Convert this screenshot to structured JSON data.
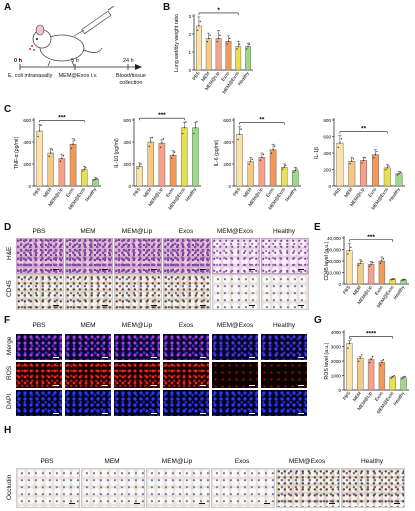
{
  "panel_letters": [
    "A",
    "B",
    "C",
    "D",
    "E",
    "F",
    "G",
    "H"
  ],
  "panelA": {
    "t0": "0 h",
    "t1": "5 h",
    "t2": "24 h",
    "step0": "E. coli intranasally",
    "step1": "MEM@Exos i.v.",
    "step2": "Blood/tissue collection"
  },
  "groups": [
    "PBS",
    "MEM",
    "MEM@Lip",
    "Exos",
    "MEM@Exos",
    "Healthy"
  ],
  "colors": [
    "#fbe3a8",
    "#f6c983",
    "#f7a18c",
    "#f1995a",
    "#e8e04c",
    "#9ed88c"
  ],
  "chart_data": [
    {
      "id": "B",
      "type": "bar",
      "ylabel": "Lung wet/dry weight ratio",
      "ylim": [
        0,
        3
      ],
      "yticks": [
        0,
        1,
        2,
        3
      ],
      "categories": [
        "PBS",
        "MEM",
        "MEM@Lip",
        "Exos",
        "MEM@Exos",
        "Healthy"
      ],
      "values": [
        2.45,
        1.75,
        1.75,
        1.6,
        1.3,
        1.3
      ],
      "errors": [
        0.5,
        0.3,
        0.45,
        0.3,
        0.3,
        0.2
      ],
      "sig": [
        {
          "from": 0,
          "to": 4,
          "label": "*"
        }
      ]
    },
    {
      "id": "C1",
      "type": "bar",
      "ylabel": "TNF-α (pg/ml)",
      "ylim": [
        0,
        600
      ],
      "yticks": [
        0,
        200,
        400,
        600
      ],
      "categories": [
        "PBS",
        "MEM",
        "MEM@Lip",
        "Exos",
        "MEM@Exos",
        "Healthy"
      ],
      "values": [
        500,
        300,
        250,
        380,
        150,
        60
      ],
      "errors": [
        60,
        40,
        40,
        50,
        30,
        20
      ],
      "sig": [
        {
          "from": 0,
          "to": 4,
          "label": "***"
        }
      ]
    },
    {
      "id": "C2",
      "type": "bar",
      "ylabel": "IL-10 (pg/ml)",
      "ylim": [
        0,
        600
      ],
      "yticks": [
        0,
        200,
        400,
        600
      ],
      "categories": [
        "PBS",
        "MEM",
        "MEM@Lip",
        "Exos",
        "MEM@Exos",
        "Healthy"
      ],
      "values": [
        180,
        400,
        390,
        280,
        530,
        530
      ],
      "errors": [
        30,
        40,
        30,
        40,
        50,
        50
      ],
      "sig": [
        {
          "from": 0,
          "to": 4,
          "label": "***"
        }
      ]
    },
    {
      "id": "C3",
      "type": "bar",
      "ylabel": "IL-6 (pg/ml)",
      "ylim": [
        0,
        600
      ],
      "yticks": [
        0,
        200,
        400,
        600
      ],
      "categories": [
        "PBS",
        "MEM",
        "MEM@Lip",
        "Exos",
        "MEM@Exos",
        "Healthy"
      ],
      "values": [
        470,
        220,
        260,
        330,
        170,
        140
      ],
      "errors": [
        70,
        40,
        40,
        50,
        30,
        30
      ],
      "sig": [
        {
          "from": 0,
          "to": 4,
          "label": "**"
        }
      ]
    },
    {
      "id": "C4",
      "type": "bar",
      "ylabel": "IL-1β",
      "ylim": [
        0,
        800
      ],
      "yticks": [
        0,
        200,
        400,
        600,
        800
      ],
      "categories": [
        "PBS",
        "MEM",
        "MEM@Lip",
        "Exos",
        "MEM@Exos",
        "Healthy"
      ],
      "values": [
        520,
        300,
        310,
        380,
        220,
        150
      ],
      "errors": [
        90,
        50,
        40,
        60,
        40,
        30
      ],
      "sig": [
        {
          "from": 0,
          "to": 4,
          "label": "**"
        }
      ]
    },
    {
      "id": "E",
      "type": "bar",
      "ylabel": "CD45 level (a.u.)",
      "ylim": [
        0,
        40000
      ],
      "yticks": [
        0,
        10000,
        20000,
        30000,
        40000
      ],
      "ytick_labels": [
        "0",
        "10,000",
        "20,000",
        "30,000",
        "40,000"
      ],
      "categories": [
        "PBS",
        "MEM",
        "MEM@Lip",
        "Exos",
        "MEM@Exos",
        "Healthy"
      ],
      "values": [
        29000,
        18000,
        17000,
        20000,
        4000,
        3500
      ],
      "errors": [
        6000,
        3000,
        2500,
        3500,
        800,
        700
      ],
      "sig": [
        {
          "from": 0,
          "to": 4,
          "label": "***"
        }
      ]
    },
    {
      "id": "G",
      "type": "bar",
      "ylabel": "ROS level (a.u.)",
      "ylim": [
        0,
        4000
      ],
      "yticks": [
        0,
        1000,
        2000,
        3000,
        4000
      ],
      "categories": [
        "PBS",
        "MEM",
        "MEM@Lip",
        "Exos",
        "MEM@Exos",
        "Healthy"
      ],
      "values": [
        3200,
        2200,
        2100,
        1900,
        900,
        850
      ],
      "errors": [
        200,
        100,
        100,
        120,
        60,
        60
      ],
      "sig": [
        {
          "from": 0,
          "to": 4,
          "label": "****"
        }
      ]
    }
  ],
  "panelD": {
    "rows": [
      "H&E",
      "CD45"
    ],
    "cols": [
      "PBS",
      "MEM",
      "MEM@Lip",
      "Exos",
      "MEM@Exos",
      "Healthy"
    ]
  },
  "panelF": {
    "rows": [
      "Merge",
      "ROS",
      "DAPI"
    ],
    "cols": [
      "PBS",
      "MEM",
      "MEM@Lip",
      "Exos",
      "MEM@Exos",
      "Healthy"
    ]
  },
  "panelH": {
    "rows": [
      "Occludin"
    ],
    "cols": [
      "PBS",
      "MEM",
      "MEM@Lip",
      "Exos",
      "MEM@Exos",
      "Healthy"
    ]
  }
}
